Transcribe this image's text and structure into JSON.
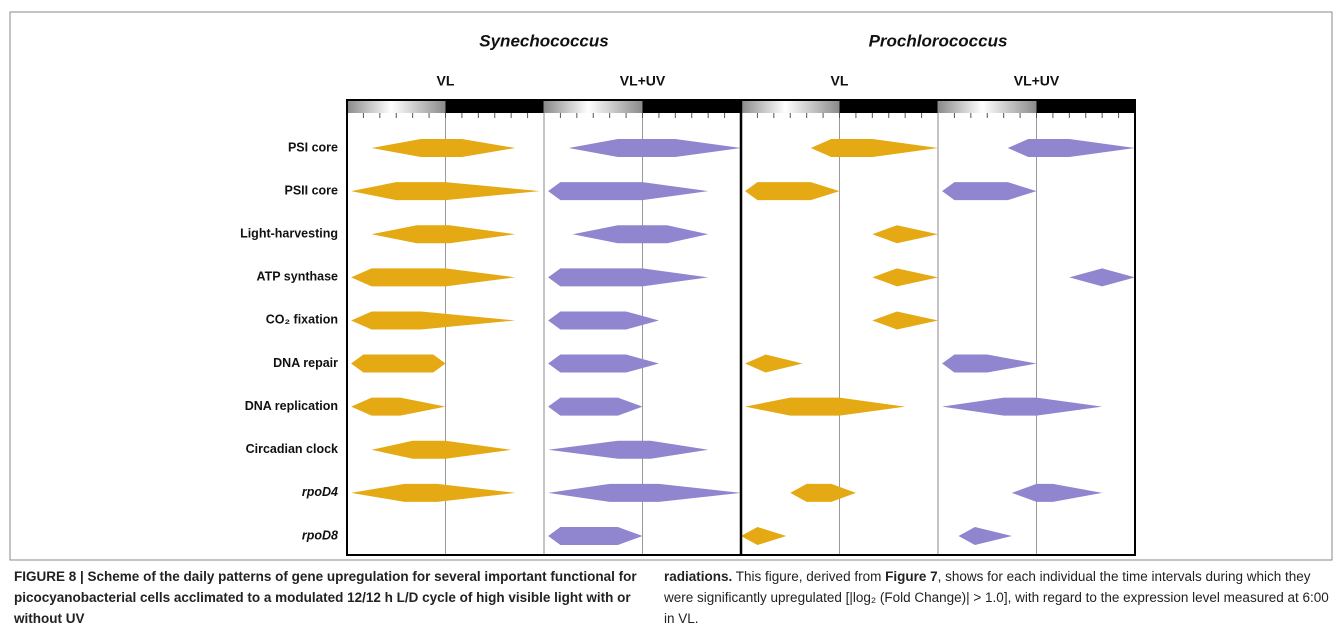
{
  "figure": {
    "organisms": [
      "Synechococcus",
      "Prochlorococcus"
    ],
    "rows": [
      "PSI core",
      "PSII core",
      "Light-harvesting",
      "ATP synthase",
      "CO₂ fixation",
      "DNA repair",
      "DNA replication",
      "Circadian clock",
      "rpoD4",
      "rpoD8"
    ],
    "italic_rows": [
      "rpoD4",
      "rpoD8"
    ],
    "xlim": [
      0,
      24
    ],
    "xticks": [
      0,
      2,
      4,
      6,
      8,
      10,
      12,
      14,
      16,
      18,
      20,
      22,
      24
    ],
    "lights_off": 12,
    "panels": [
      {
        "label": "VL",
        "color": "#e4a913",
        "intervals": [
          [
            3,
            9,
            14,
            20.5
          ],
          [
            0.5,
            6,
            12,
            23.5
          ],
          [
            3,
            8.5,
            12.5,
            20.5
          ],
          [
            0.5,
            3,
            12,
            20.5
          ],
          [
            0.5,
            3,
            9,
            20.5
          ],
          [
            0.5,
            2,
            10.5,
            12
          ],
          [
            0.5,
            3,
            6.5,
            12
          ],
          [
            3,
            8,
            12,
            20
          ],
          [
            0.5,
            7,
            11,
            20.5
          ],
          null
        ]
      },
      {
        "label": "VL+UV",
        "color": "#8f86cf",
        "intervals": [
          [
            3,
            9,
            16,
            24
          ],
          [
            0.5,
            2,
            12,
            20
          ],
          [
            3.5,
            9,
            15,
            20
          ],
          [
            0.5,
            2,
            12,
            20
          ],
          [
            0.5,
            2,
            10,
            14
          ],
          [
            0.5,
            2,
            10,
            14
          ],
          [
            0.5,
            2,
            9,
            12
          ],
          [
            0.5,
            9,
            13,
            20
          ],
          [
            0.5,
            8,
            14,
            24
          ],
          [
            0.5,
            2,
            9,
            12
          ]
        ]
      },
      {
        "label": "VL",
        "color": "#e4a913",
        "intervals": [
          [
            8.5,
            11,
            16,
            24
          ],
          [
            0.5,
            2,
            8.5,
            12
          ],
          [
            16,
            19,
            19,
            24
          ],
          [
            16,
            19,
            19,
            24
          ],
          [
            16,
            19,
            19,
            24
          ],
          [
            0.5,
            3,
            3,
            7.5
          ],
          [
            0.5,
            6,
            12,
            20
          ],
          null,
          [
            6,
            8,
            11,
            14
          ],
          [
            0,
            2,
            2,
            5.5
          ]
        ]
      },
      {
        "label": "VL+UV",
        "color": "#8f86cf",
        "intervals": [
          [
            8.5,
            11,
            16,
            24
          ],
          [
            0.5,
            2,
            8.5,
            12
          ],
          null,
          [
            16,
            20,
            20,
            24
          ],
          null,
          [
            0.5,
            2,
            6,
            12
          ],
          [
            0.5,
            8,
            12,
            20
          ],
          null,
          [
            9,
            12,
            14,
            20
          ],
          [
            2.5,
            4.5,
            4.5,
            9
          ]
        ]
      }
    ],
    "caption": {
      "left": [
        {
          "text": "FIGURE 8 | Scheme of the daily patterns of gene upregulation for several important functional for picocyanobacterial cells acclimated to a modulated 12/12 h L/D cycle of high visible light with or without UV",
          "bold": true
        }
      ],
      "right": [
        {
          "text": "radiations.",
          "bold": true
        },
        {
          "text": " This figure, derived from ",
          "bold": false
        },
        {
          "text": "Figure 7",
          "bold": true
        },
        {
          "text": ", shows for each individual the time intervals during which they were significantly upregulated [|log₂ (Fold Change)| > 1.0], with regard to the expression level measured at 6:00 in VL.",
          "bold": false
        }
      ]
    }
  }
}
